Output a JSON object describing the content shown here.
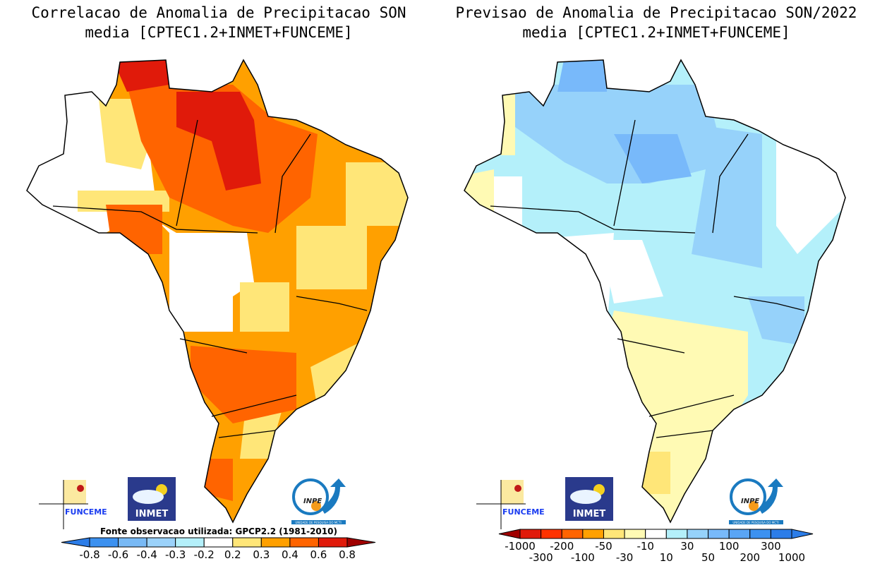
{
  "left_panel": {
    "title_line1": "Correlacao de Anomalia de Precipitacao SON",
    "title_line2": "media [CPTEC1.2+INMET+FUNCEME]",
    "source_note": "Fonte observacao utilizada: GPCP2.2 (1981-2010)",
    "colorbar": {
      "labels": [
        "-0.8",
        "-0.6",
        "-0.4",
        "-0.3",
        "-0.2",
        "0.2",
        "0.3",
        "0.4",
        "0.6",
        "0.8"
      ],
      "colors": [
        "#2c7de8",
        "#3c91f0",
        "#78b9f5",
        "#9bd2fa",
        "#b4f0fa",
        "#ffffff",
        "#ffe678",
        "#ffa000",
        "#ff6400",
        "#e01a0a",
        "#a00000"
      ]
    }
  },
  "right_panel": {
    "title_line1": "Previsao de Anomalia de Precipitacao SON/2022",
    "title_line2": "media [CPTEC1.2+INMET+FUNCEME]",
    "colorbar": {
      "labels": [
        "-1000",
        "-300",
        "-200",
        "-100",
        "-50",
        "-30",
        "-10",
        "10",
        "30",
        "50",
        "100",
        "200",
        "300",
        "1000"
      ],
      "colors": [
        "#a00000",
        "#e01a0a",
        "#ff3200",
        "#ff6400",
        "#ffa000",
        "#ffe678",
        "#fffab4",
        "#ffffff",
        "#b4f0fa",
        "#96d2fa",
        "#78b9fa",
        "#5aa5f5",
        "#3c91f0",
        "#2c7de8",
        "#2c7de8"
      ]
    }
  },
  "logos": {
    "funceme": "FUNCEME",
    "inmet": "INMET",
    "inpe": "INPE",
    "inpe_caption": "UNIDADE DE PESQUISA DO MCTI"
  }
}
